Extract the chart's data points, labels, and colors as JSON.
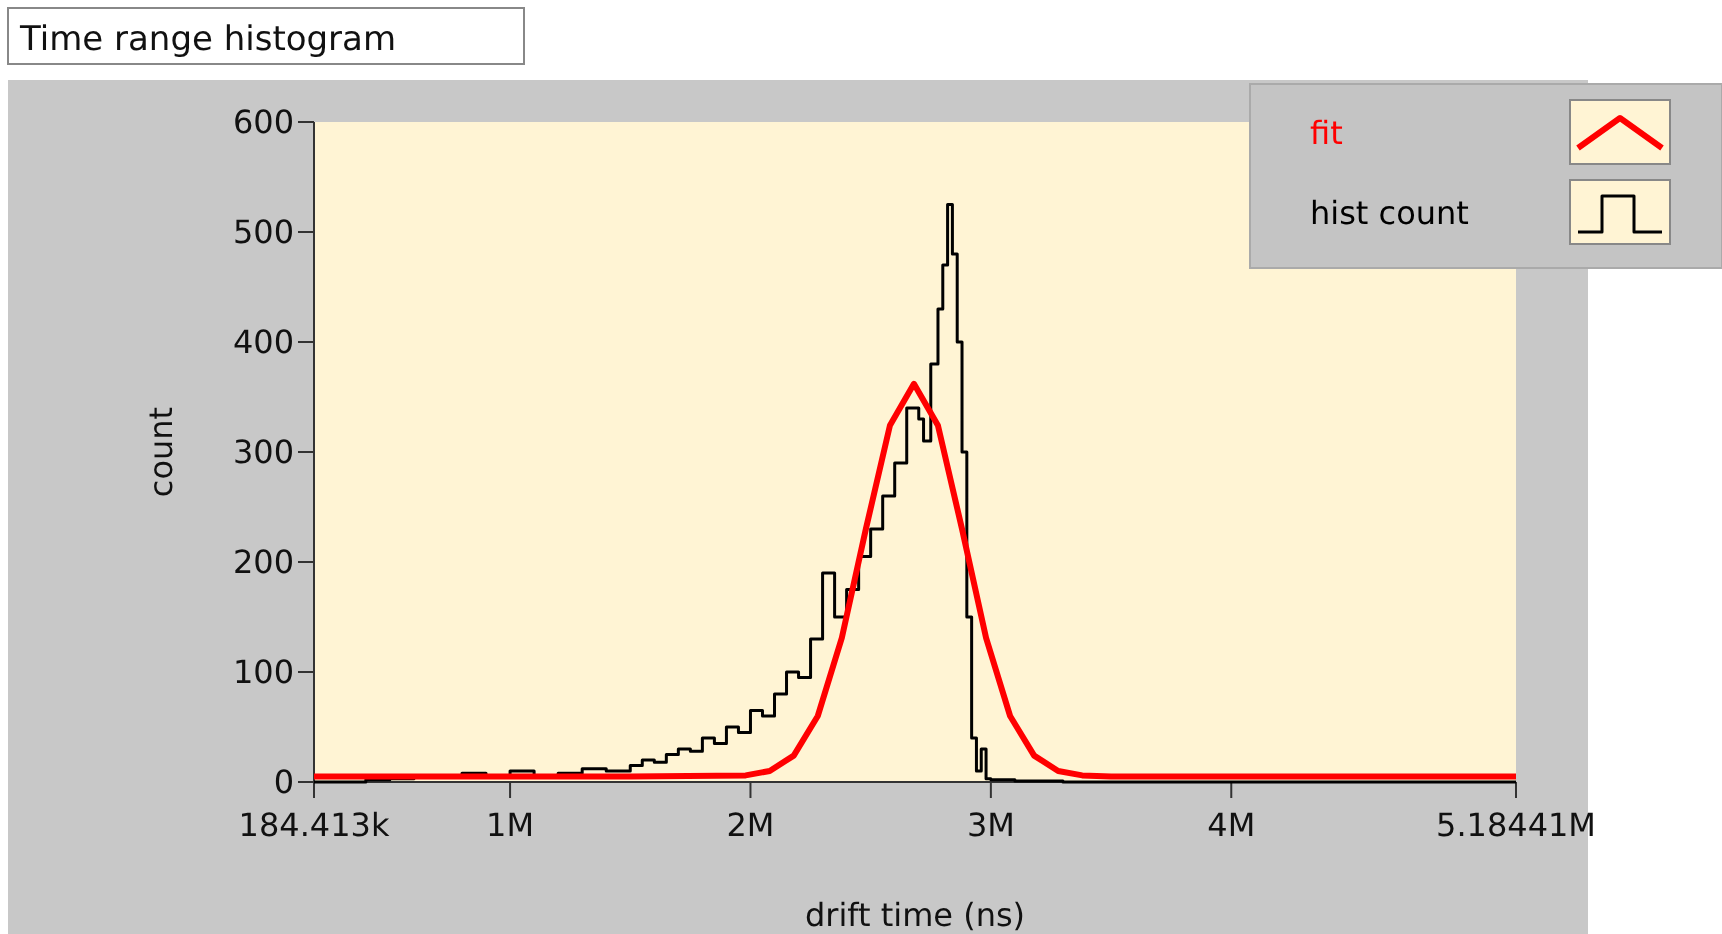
{
  "chart_data": {
    "type": "line",
    "title": "Time range histogram",
    "xlabel": "drift time (ns)",
    "ylabel": "count",
    "xlim": [
      184413,
      5184410
    ],
    "xticks": [
      {
        "value": 184413,
        "label": "184.413k"
      },
      {
        "value": 1000000,
        "label": "1M"
      },
      {
        "value": 2000000,
        "label": "2M"
      },
      {
        "value": 3000000,
        "label": "3M"
      },
      {
        "value": 4000000,
        "label": "4M"
      },
      {
        "value": 5184410,
        "label": "5.18441M"
      }
    ],
    "ylim": [
      0,
      600
    ],
    "yticks": [
      0,
      100,
      200,
      300,
      400,
      500,
      600
    ],
    "grid": false,
    "legend": "top right",
    "series": [
      {
        "name": "fit",
        "color": "#ff0000",
        "x": [
          184413,
          1000000,
          1500000,
          1980000,
          2080000,
          2180000,
          2280000,
          2380000,
          2480000,
          2580000,
          2680000,
          2780000,
          2880000,
          2980000,
          3080000,
          3180000,
          3280000,
          3380000,
          3500000,
          4000000,
          5184410
        ],
        "values": [
          5,
          5,
          5,
          6,
          10,
          24,
          60,
          131,
          230,
          324,
          362,
          324,
          230,
          131,
          60,
          24,
          10,
          6,
          5,
          5,
          5
        ]
      },
      {
        "name": "hist count",
        "type": "step",
        "color": "#000000",
        "x": [
          184413,
          300000,
          400000,
          500000,
          600000,
          700000,
          800000,
          900000,
          1000000,
          1100000,
          1200000,
          1300000,
          1400000,
          1500000,
          1550000,
          1600000,
          1650000,
          1700000,
          1750000,
          1800000,
          1850000,
          1900000,
          1950000,
          2000000,
          2050000,
          2100000,
          2150000,
          2200000,
          2250000,
          2300000,
          2350000,
          2400000,
          2450000,
          2500000,
          2550000,
          2600000,
          2650000,
          2700000,
          2720000,
          2750000,
          2780000,
          2800000,
          2820000,
          2840000,
          2860000,
          2880000,
          2900000,
          2920000,
          2940000,
          2960000,
          2980000,
          3000000,
          3100000,
          3300000,
          5184410
        ],
        "values": [
          0,
          0,
          2,
          3,
          5,
          4,
          8,
          6,
          10,
          5,
          8,
          12,
          10,
          15,
          20,
          18,
          25,
          30,
          28,
          40,
          35,
          50,
          45,
          65,
          60,
          80,
          100,
          95,
          130,
          190,
          150,
          175,
          205,
          230,
          260,
          290,
          340,
          330,
          310,
          380,
          430,
          470,
          525,
          480,
          400,
          300,
          150,
          40,
          10,
          30,
          3,
          2,
          1,
          0,
          0
        ]
      }
    ]
  }
}
